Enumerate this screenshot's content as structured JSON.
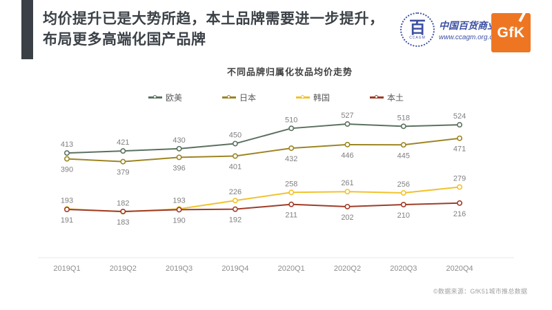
{
  "slide": {
    "title_lines": [
      "均价提升已是大势所趋，本土品牌需要进一步提升，",
      "布局更多高端化国产品牌"
    ],
    "footnote": "©数据来源：GfK51城市推总数据"
  },
  "logos": {
    "ccagm": {
      "org_name": "中国百货商业协会",
      "website": "www.ccagm.org.cn",
      "emblem_char": "百",
      "emblem_text": "CCAGM",
      "color": "#3c4fa1"
    },
    "gfk": {
      "label": "GfK",
      "bg_color": "#ee7623",
      "text_color": "#ffffff"
    }
  },
  "chart_data": {
    "type": "line",
    "title": "不同品牌归属化妆品均价走势",
    "categories": [
      "2019Q1",
      "2019Q2",
      "2019Q3",
      "2019Q4",
      "2020Q1",
      "2020Q2",
      "2020Q3",
      "2020Q4"
    ],
    "series": [
      {
        "name": "欧美",
        "color": "#5a705f",
        "label_position": "above",
        "values": [
          413,
          421,
          430,
          450,
          510,
          527,
          518,
          524
        ]
      },
      {
        "name": "日本",
        "color": "#9c8422",
        "label_position": "below",
        "values": [
          390,
          379,
          396,
          401,
          432,
          446,
          445,
          471
        ]
      },
      {
        "name": "韩国",
        "color": "#f2c22b",
        "label_position": "above",
        "values": [
          193,
          182,
          193,
          226,
          258,
          261,
          256,
          279
        ]
      },
      {
        "name": "本土",
        "color": "#9e3b26",
        "label_position": "below",
        "values": [
          191,
          183,
          190,
          192,
          211,
          202,
          210,
          216
        ]
      }
    ],
    "ylim": [
      0,
      580
    ],
    "grid": false,
    "legend_position": "top",
    "marker": "open-circle",
    "data_labels": true,
    "label_color": "#7f7f7f",
    "axis_line_color": "#e8e8e8"
  }
}
